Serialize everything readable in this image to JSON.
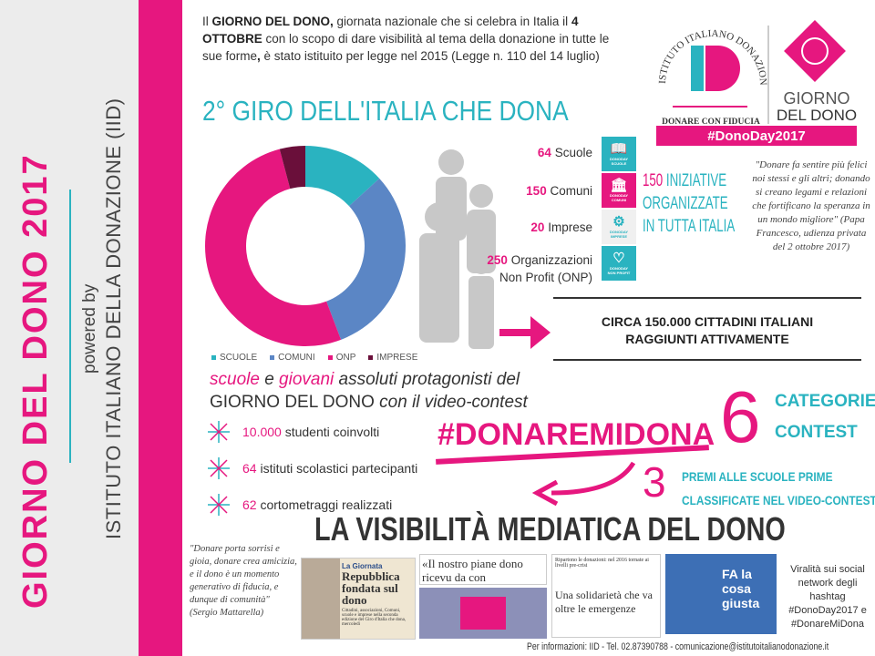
{
  "sidebar": {
    "title": "GIORNO DEL DONO 2017",
    "powered": "powered by",
    "institute": "ISTITUTO ITALIANO DELLA DONAZIONE (IID)"
  },
  "intro": {
    "p1": "Il ",
    "b1": "GIORNO DEL DONO,",
    "p2": " giornata nazionale che si celebra in Italia il ",
    "b2": "4 OTTOBRE",
    "p3": " con lo scopo di dare visibilità al tema della donazione in tutte le sue forme",
    "b3": ",",
    "p4": " è stato istituito per legge nel 2015 (Legge n. 110 del 14 luglio)"
  },
  "headline": "2° GIRO DELL'ITALIA CHE DONA",
  "logo": {
    "arc": "ISTITUTO ITALIANO DONAZIONE",
    "mark": "ID",
    "tagline": "DONARE CON FIDUCIA",
    "giorno": "GIORNO",
    "deldono": "DEL DONO",
    "hashtag": "#DonoDay2017"
  },
  "colors": {
    "pink": "#e6177f",
    "teal": "#2ab3c0",
    "blue": "#5b86c5",
    "maroon": "#6a0f3a"
  },
  "chart_data": {
    "type": "pie",
    "donut": true,
    "categories": [
      "SCUOLE",
      "COMUNI",
      "ONP",
      "IMPRESE"
    ],
    "values": [
      64,
      150,
      250,
      20
    ],
    "colors": [
      "#2ab3c0",
      "#5b86c5",
      "#e6177f",
      "#6a0f3a"
    ],
    "legend": "bottom"
  },
  "counts": [
    {
      "n": "64",
      "label": "Scuole",
      "icon": "book-icon",
      "tag": "DONODAY",
      "cat": "SCUOLE",
      "bg": "#2ab3c0"
    },
    {
      "n": "150",
      "label": "Comuni",
      "icon": "town-hall-icon",
      "tag": "DONODAY",
      "cat": "COMUNI",
      "bg": "#e6177f"
    },
    {
      "n": "20",
      "label": "Imprese",
      "icon": "gears-icon",
      "tag": "DONODAY",
      "cat": "IMPRESE",
      "bg": "#f0f0f0"
    },
    {
      "n": "250",
      "label": "Organizzazioni",
      "label2": "Non Profit (ONP)",
      "icon": "heart-icon",
      "tag": "DONODAY",
      "cat": "NON PROFIT",
      "bg": "#2ab3c0"
    }
  ],
  "initiatives": {
    "n": "150",
    "l1": " INIZIATIVE",
    "l2": "ORGANIZZATE",
    "l3": "IN TUTTA ITALIA"
  },
  "quote1": "\"Donare fa sentire più felici noi stessi e gli altri; donando si creano legami e relazioni che fortificano la speranza in un mondo migliore\" (Papa Francesco, udienza privata del 2 ottobre 2017)",
  "citizens": {
    "l1": "CIRCA 150.000 CITTADINI ITALIANI",
    "l2": "RAGGIUNTI ATTIVAMENTE"
  },
  "lead": {
    "w1": "scuole",
    "w2": " e ",
    "w3": "giovani",
    "w4": " assoluti protagonisti del",
    "l2a": "GIORNO DEL DONO",
    "l2b": " con il video-contest"
  },
  "stats": [
    {
      "n": "10.000",
      "t": " studenti coinvolti"
    },
    {
      "n": "64",
      "t": " istituti scolastici partecipanti"
    },
    {
      "n": "62",
      "t": " cortometraggi realizzati"
    }
  ],
  "contest": {
    "hashtag": "#DONAREMIDONA",
    "six": "6",
    "cat1": "CATEGORIE",
    "cat2": "CONTEST",
    "three": "3",
    "prem1": "PREMI ALLE SCUOLE PRIME",
    "prem2": "CLASSIFICATE NEL VIDEO-CONTEST"
  },
  "media": {
    "title": "LA VISIBILITÀ MEDIATICA DEL DONO",
    "quote2": "\"Donare porta sorrisi e gioia, donare crea amicizia, e il dono è un momento generativo di fiducia, e dunque di comunità\" (Sergio Mattarella)",
    "clip1_head": "La Giornata",
    "clip1_title": "Repubblica fondata sul dono",
    "clip1_body": "Cittadini, associazioni, Comuni, scuole e imprese nella seconda edizione del Giro d'Italia che dona, mercoledì",
    "clip2": "«Il nostro piane dono ricevu da con",
    "clip3_head": "Ripartono le donazioni: nel 2016 tornate ai livelli pre-crisi",
    "clip3_title": "Una solidarietà che va oltre le emergenze",
    "tv_text": "FA la cosa giusta",
    "viral": "Viralità sui social network degli hashtag #DonoDay2017 e #DonareMiDona"
  },
  "footer": "Per informazioni: IID - Tel. 02.87390788 - comunicazione@istitutoitalianodonazione.it"
}
